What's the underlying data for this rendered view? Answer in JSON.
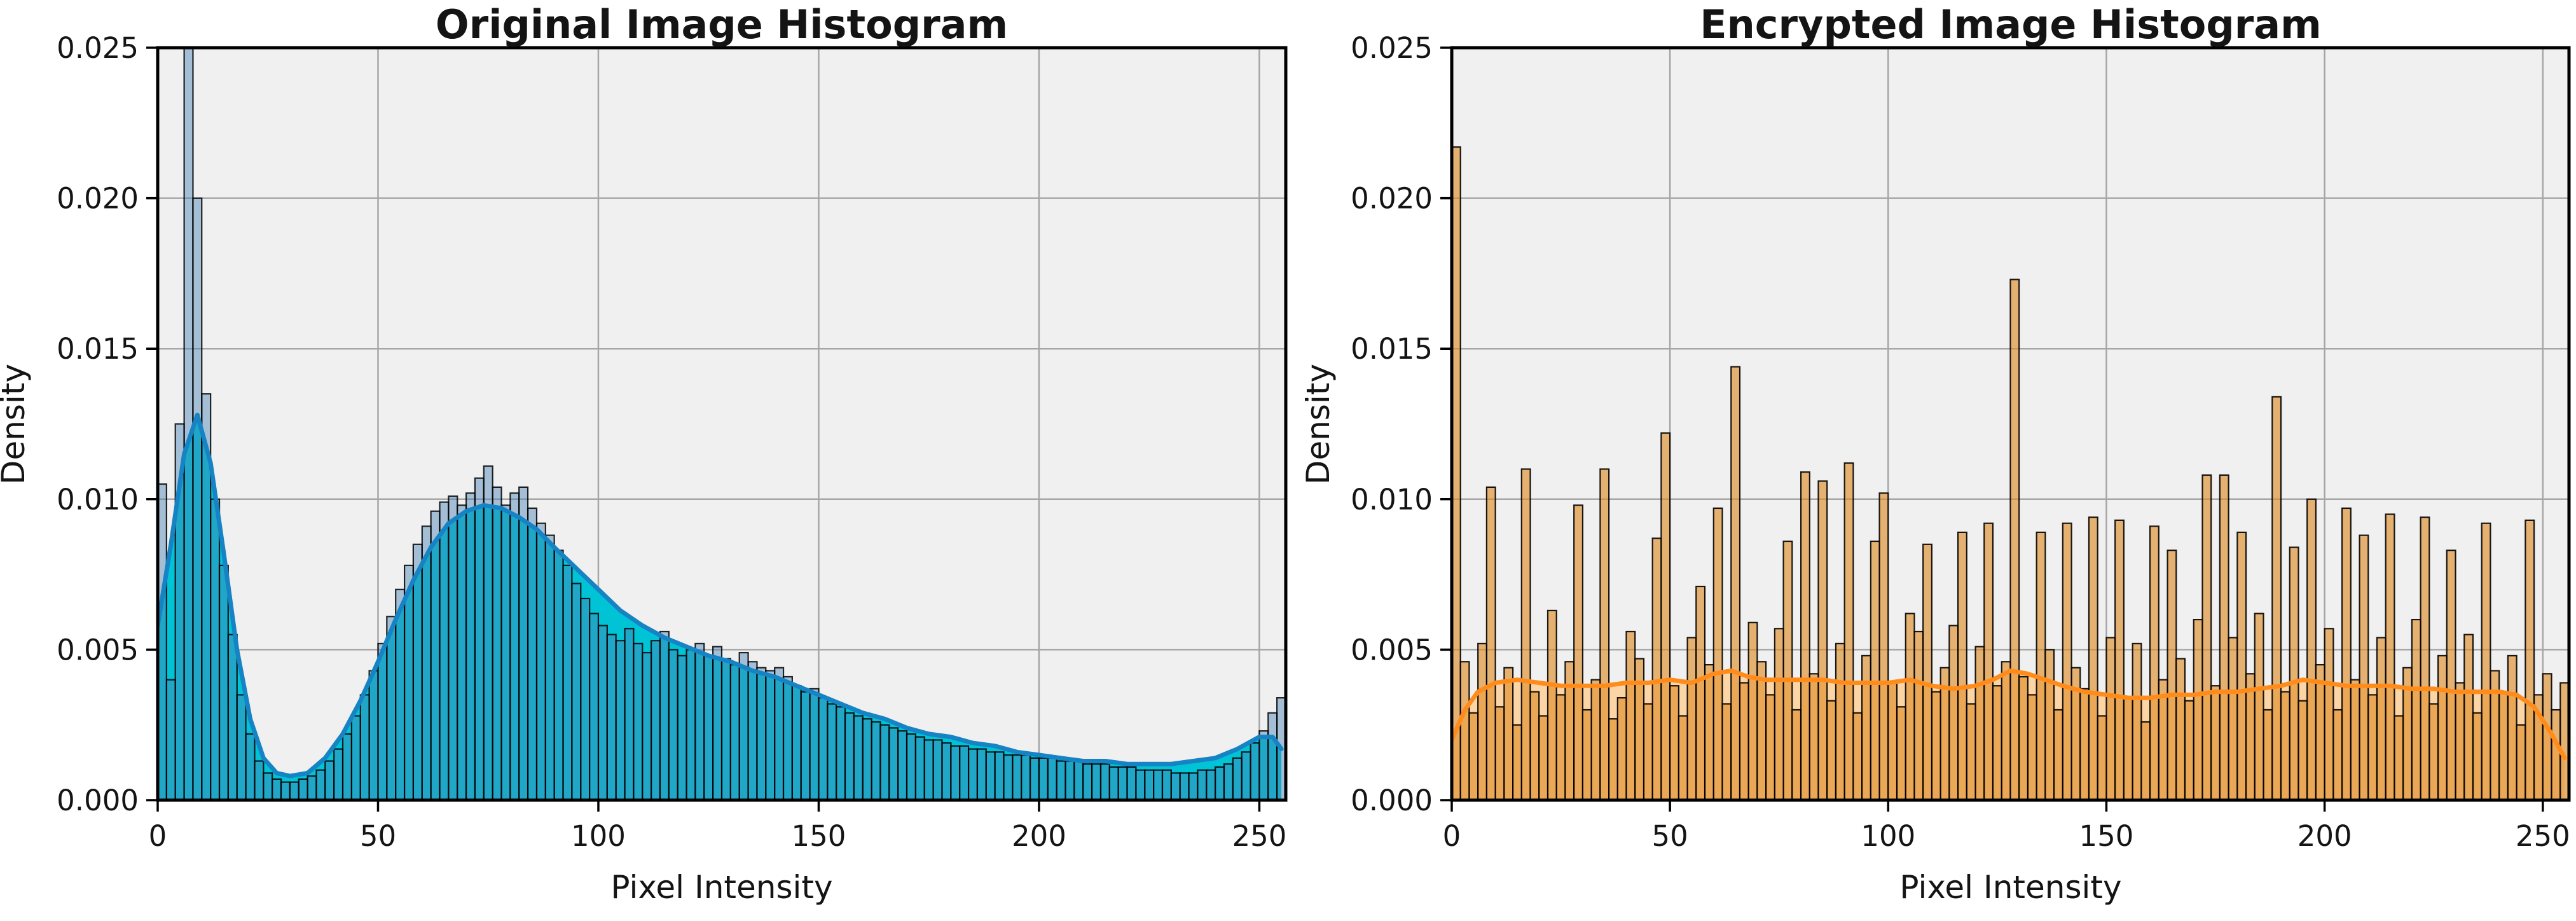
{
  "figure": {
    "background": "#ffffff",
    "plot_background": "#f0f0f0",
    "grid_color": "#a6a6a6",
    "spine_color": "#000000",
    "text_color": "#141414"
  },
  "axes_shared": {
    "xlabel": "Pixel Intensity",
    "ylabel": "Density",
    "x_tick_labels": [
      "0",
      "50",
      "100",
      "150",
      "200",
      "250"
    ],
    "x_tick_values": [
      0,
      50,
      100,
      150,
      200,
      250
    ],
    "y_tick_labels": [
      "0.000",
      "0.005",
      "0.010",
      "0.015",
      "0.020",
      "0.025"
    ],
    "y_tick_values": [
      0,
      0.005,
      0.01,
      0.015,
      0.02,
      0.025
    ],
    "xlim": [
      0,
      256
    ],
    "ylim": [
      0,
      0.025
    ],
    "grid": true
  },
  "chart_data": [
    {
      "type": "bar",
      "subtype": "histogram_with_kde",
      "title": "Original Image Histogram",
      "xlabel": "Pixel Intensity",
      "ylabel": "Density",
      "xlim": [
        0,
        256
      ],
      "ylim": [
        0,
        0.025
      ],
      "legend": "none",
      "grid": true,
      "bin_start": 0,
      "bin_width": 2,
      "bar_fill": "rgba(70,130,180,0.45)",
      "bar_edge": "rgba(0,0,0,0.85)",
      "kde_line_color": "#1583c4",
      "kde_fill_color": "#00c3d6",
      "bins": [
        0.0105,
        0.004,
        0.0125,
        0.0265,
        0.02,
        0.0135,
        0.01,
        0.0078,
        0.0055,
        0.0035,
        0.0022,
        0.0013,
        0.0009,
        0.0007,
        0.0006,
        0.0006,
        0.0007,
        0.0008,
        0.001,
        0.0013,
        0.0017,
        0.0022,
        0.0028,
        0.0035,
        0.0043,
        0.0052,
        0.0061,
        0.007,
        0.0078,
        0.0085,
        0.0091,
        0.0096,
        0.0099,
        0.0101,
        0.0098,
        0.0102,
        0.0107,
        0.0111,
        0.0104,
        0.0098,
        0.0102,
        0.0104,
        0.0097,
        0.0092,
        0.0088,
        0.0083,
        0.0078,
        0.0072,
        0.0067,
        0.0062,
        0.0058,
        0.0055,
        0.0053,
        0.0057,
        0.0052,
        0.0049,
        0.0053,
        0.0056,
        0.005,
        0.0048,
        0.005,
        0.0052,
        0.0048,
        0.0051,
        0.0047,
        0.0045,
        0.0049,
        0.0046,
        0.0044,
        0.0043,
        0.0044,
        0.0041,
        0.0038,
        0.0036,
        0.0037,
        0.0034,
        0.0032,
        0.0031,
        0.0029,
        0.0028,
        0.0027,
        0.0026,
        0.0025,
        0.0024,
        0.0023,
        0.0022,
        0.0021,
        0.002,
        0.002,
        0.0019,
        0.0018,
        0.0018,
        0.0017,
        0.0017,
        0.0016,
        0.0016,
        0.0015,
        0.0015,
        0.0015,
        0.0014,
        0.0014,
        0.0014,
        0.0013,
        0.0013,
        0.0013,
        0.0012,
        0.0012,
        0.0012,
        0.0011,
        0.0011,
        0.0011,
        0.001,
        0.001,
        0.001,
        0.001,
        0.0009,
        0.0009,
        0.0009,
        0.001,
        0.001,
        0.0011,
        0.0012,
        0.0014,
        0.0016,
        0.0019,
        0.0023,
        0.0029,
        0.0034
      ],
      "kde_x": [
        0,
        3,
        6,
        9,
        12,
        15,
        18,
        21,
        24,
        27,
        30,
        34,
        38,
        42,
        46,
        50,
        54,
        58,
        62,
        66,
        70,
        74,
        78,
        82,
        86,
        90,
        95,
        100,
        105,
        110,
        115,
        120,
        125,
        130,
        135,
        140,
        145,
        150,
        155,
        160,
        165,
        170,
        175,
        180,
        185,
        190,
        195,
        200,
        205,
        210,
        215,
        220,
        225,
        230,
        235,
        240,
        245,
        250,
        253,
        255
      ],
      "kde_y": [
        0.0058,
        0.0085,
        0.0115,
        0.0128,
        0.0112,
        0.0082,
        0.005,
        0.0027,
        0.0014,
        0.0009,
        0.0008,
        0.0009,
        0.0014,
        0.0022,
        0.0033,
        0.0046,
        0.006,
        0.0073,
        0.0084,
        0.0092,
        0.0096,
        0.0098,
        0.0097,
        0.0094,
        0.009,
        0.0084,
        0.0077,
        0.007,
        0.0063,
        0.0058,
        0.0054,
        0.0051,
        0.0048,
        0.0046,
        0.0043,
        0.0041,
        0.0038,
        0.0035,
        0.0032,
        0.0029,
        0.0027,
        0.0024,
        0.0022,
        0.0021,
        0.0019,
        0.0018,
        0.0016,
        0.0015,
        0.0014,
        0.0013,
        0.0013,
        0.0012,
        0.0012,
        0.0012,
        0.0013,
        0.0014,
        0.0017,
        0.0021,
        0.0021,
        0.0017
      ]
    },
    {
      "type": "bar",
      "subtype": "histogram_with_kde",
      "title": "Encrypted Image Histogram",
      "xlabel": "Pixel Intensity",
      "ylabel": "Density",
      "xlim": [
        0,
        256
      ],
      "ylim": [
        0,
        0.025
      ],
      "legend": "none",
      "grid": true,
      "bin_start": 0,
      "bin_width": 2,
      "bar_fill": "rgba(222,139,35,0.62)",
      "bar_edge": "rgba(0,0,0,0.9)",
      "kde_line_color": "#ff8c1a",
      "kde_fill_color": "#fbd5a5",
      "bins": [
        0.0217,
        0.0046,
        0.0029,
        0.0052,
        0.0104,
        0.0031,
        0.0044,
        0.0025,
        0.011,
        0.0036,
        0.0028,
        0.0063,
        0.0035,
        0.0046,
        0.0098,
        0.003,
        0.004,
        0.011,
        0.0027,
        0.0034,
        0.0056,
        0.0047,
        0.0032,
        0.0087,
        0.0122,
        0.0038,
        0.0028,
        0.0054,
        0.0071,
        0.0045,
        0.0097,
        0.0032,
        0.0144,
        0.0039,
        0.0059,
        0.0046,
        0.0035,
        0.0057,
        0.0086,
        0.003,
        0.0109,
        0.0042,
        0.0106,
        0.0033,
        0.0052,
        0.0112,
        0.0029,
        0.0048,
        0.0086,
        0.0102,
        0.0039,
        0.0031,
        0.0062,
        0.0056,
        0.0085,
        0.0036,
        0.0044,
        0.0058,
        0.0089,
        0.0032,
        0.0051,
        0.0092,
        0.0038,
        0.0046,
        0.0173,
        0.0041,
        0.0035,
        0.0089,
        0.005,
        0.003,
        0.0092,
        0.0044,
        0.0037,
        0.0094,
        0.0028,
        0.0054,
        0.0093,
        0.0034,
        0.0052,
        0.0026,
        0.0091,
        0.004,
        0.0083,
        0.0047,
        0.0033,
        0.006,
        0.0108,
        0.0038,
        0.0108,
        0.0054,
        0.0089,
        0.0042,
        0.0062,
        0.003,
        0.0134,
        0.0036,
        0.0084,
        0.0033,
        0.01,
        0.0045,
        0.0057,
        0.003,
        0.0097,
        0.004,
        0.0088,
        0.0035,
        0.0054,
        0.0095,
        0.0028,
        0.0044,
        0.006,
        0.0094,
        0.0032,
        0.0048,
        0.0083,
        0.0039,
        0.0055,
        0.0029,
        0.0092,
        0.0043,
        0.0036,
        0.0048,
        0.0025,
        0.0093,
        0.0035,
        0.0042,
        0.003,
        0.0039
      ],
      "kde_x": [
        0,
        3,
        6,
        10,
        15,
        20,
        25,
        30,
        35,
        40,
        45,
        50,
        55,
        60,
        64,
        68,
        72,
        76,
        80,
        85,
        90,
        95,
        100,
        105,
        110,
        115,
        120,
        124,
        128,
        132,
        136,
        140,
        145,
        150,
        155,
        160,
        165,
        170,
        175,
        180,
        185,
        190,
        195,
        200,
        205,
        210,
        215,
        220,
        225,
        230,
        235,
        240,
        244,
        248,
        252,
        255
      ],
      "kde_y": [
        0.002,
        0.003,
        0.0036,
        0.0039,
        0.004,
        0.0039,
        0.0038,
        0.0038,
        0.0038,
        0.0039,
        0.0039,
        0.004,
        0.0039,
        0.0042,
        0.0043,
        0.0041,
        0.004,
        0.004,
        0.004,
        0.004,
        0.0039,
        0.0039,
        0.0039,
        0.004,
        0.0038,
        0.0037,
        0.0038,
        0.004,
        0.0043,
        0.0042,
        0.004,
        0.0038,
        0.0036,
        0.0035,
        0.0034,
        0.0034,
        0.0035,
        0.0035,
        0.0036,
        0.0036,
        0.0037,
        0.0038,
        0.004,
        0.0039,
        0.0038,
        0.0038,
        0.0038,
        0.0037,
        0.0037,
        0.0036,
        0.0036,
        0.0036,
        0.0035,
        0.0031,
        0.0022,
        0.0014
      ]
    }
  ]
}
